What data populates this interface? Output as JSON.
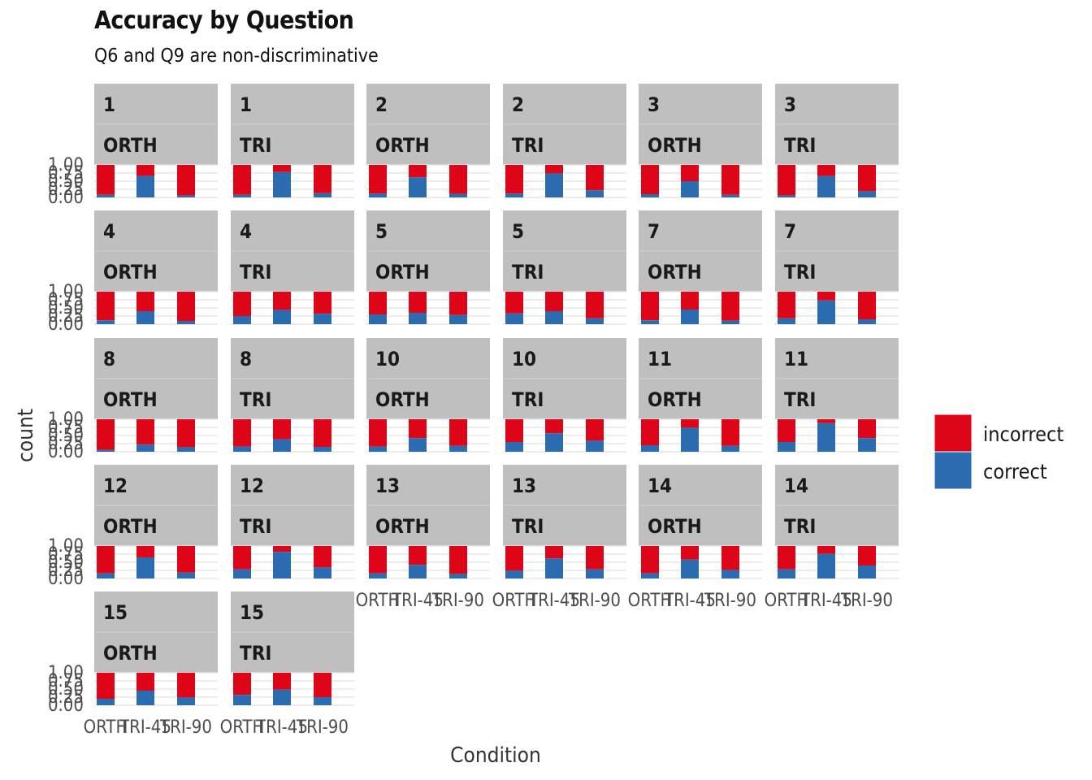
{
  "chart_data": {
    "type": "bar",
    "stacked": "fill",
    "title": "Accuracy by Question",
    "subtitle": "Q6 and Q9 are non-discriminative",
    "xlabel": "Condition",
    "ylabel": "count",
    "ylim": [
      0,
      1
    ],
    "y_ticks": [
      "0.00",
      "0.25",
      "0.50",
      "0.75",
      "1.00"
    ],
    "x_tick_labels": [
      "ORTH",
      "TRI-45",
      "TRI-90"
    ],
    "legend_placement": "right",
    "legend": [
      {
        "label": "incorrect",
        "color": "#DE0519"
      },
      {
        "label": "correct",
        "color": "#2B6CB0"
      }
    ],
    "facet_header_color": "#BFBFBF",
    "panels": [
      {
        "question": "1",
        "shape": "ORTH",
        "correct": [
          0.08,
          0.66,
          0.06
        ]
      },
      {
        "question": "1",
        "shape": "TRI",
        "correct": [
          0.08,
          0.78,
          0.13
        ]
      },
      {
        "question": "2",
        "shape": "ORTH",
        "correct": [
          0.12,
          0.62,
          0.11
        ]
      },
      {
        "question": "2",
        "shape": "TRI",
        "correct": [
          0.12,
          0.74,
          0.22
        ]
      },
      {
        "question": "3",
        "shape": "ORTH",
        "correct": [
          0.1,
          0.5,
          0.08
        ]
      },
      {
        "question": "3",
        "shape": "TRI",
        "correct": [
          0.06,
          0.66,
          0.19
        ]
      },
      {
        "question": "4",
        "shape": "ORTH",
        "correct": [
          0.12,
          0.4,
          0.1
        ]
      },
      {
        "question": "4",
        "shape": "TRI",
        "correct": [
          0.25,
          0.44,
          0.32
        ]
      },
      {
        "question": "5",
        "shape": "ORTH",
        "correct": [
          0.3,
          0.35,
          0.28
        ]
      },
      {
        "question": "5",
        "shape": "TRI",
        "correct": [
          0.33,
          0.4,
          0.18
        ]
      },
      {
        "question": "7",
        "shape": "ORTH",
        "correct": [
          0.12,
          0.45,
          0.11
        ]
      },
      {
        "question": "7",
        "shape": "TRI",
        "correct": [
          0.18,
          0.73,
          0.15
        ]
      },
      {
        "question": "8",
        "shape": "ORTH",
        "correct": [
          0.06,
          0.22,
          0.14
        ]
      },
      {
        "question": "8",
        "shape": "TRI",
        "correct": [
          0.16,
          0.38,
          0.15
        ]
      },
      {
        "question": "10",
        "shape": "ORTH",
        "correct": [
          0.16,
          0.42,
          0.18
        ]
      },
      {
        "question": "10",
        "shape": "TRI",
        "correct": [
          0.3,
          0.57,
          0.34
        ]
      },
      {
        "question": "11",
        "shape": "ORTH",
        "correct": [
          0.2,
          0.74,
          0.18
        ]
      },
      {
        "question": "11",
        "shape": "TRI",
        "correct": [
          0.3,
          0.88,
          0.42
        ]
      },
      {
        "question": "12",
        "shape": "ORTH",
        "correct": [
          0.16,
          0.65,
          0.18
        ]
      },
      {
        "question": "12",
        "shape": "TRI",
        "correct": [
          0.28,
          0.82,
          0.34
        ]
      },
      {
        "question": "13",
        "shape": "ORTH",
        "correct": [
          0.16,
          0.42,
          0.14
        ]
      },
      {
        "question": "13",
        "shape": "TRI",
        "correct": [
          0.24,
          0.62,
          0.28
        ]
      },
      {
        "question": "14",
        "shape": "ORTH",
        "correct": [
          0.16,
          0.58,
          0.26
        ]
      },
      {
        "question": "14",
        "shape": "TRI",
        "correct": [
          0.28,
          0.76,
          0.4
        ]
      },
      {
        "question": "15",
        "shape": "ORTH",
        "correct": [
          0.2,
          0.45,
          0.24
        ]
      },
      {
        "question": "15",
        "shape": "TRI",
        "correct": [
          0.32,
          0.48,
          0.25
        ]
      }
    ]
  }
}
